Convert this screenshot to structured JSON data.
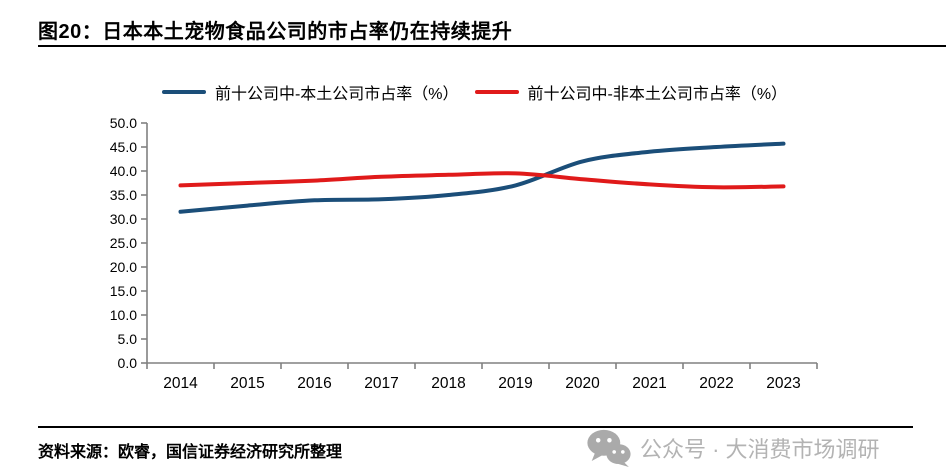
{
  "header": {
    "title": "图20：日本本土宠物食品公司的市占率仍在持续提升"
  },
  "chart_data": {
    "type": "line",
    "smooth": true,
    "grid": false,
    "legend_position": "top",
    "categories": [
      "2014",
      "2015",
      "2016",
      "2017",
      "2018",
      "2019",
      "2020",
      "2021",
      "2022",
      "2023"
    ],
    "series": [
      {
        "name": "前十公司中-本土公司市占率（%）",
        "color": "#1b4e79",
        "values": [
          31.5,
          32.8,
          33.9,
          34.1,
          35.0,
          37.0,
          42.0,
          44.0,
          45.0,
          45.7
        ]
      },
      {
        "name": "前十公司中-非本土公司市占率（%）",
        "color": "#e01a1a",
        "values": [
          37.0,
          37.5,
          38.0,
          38.8,
          39.2,
          39.5,
          38.3,
          37.2,
          36.6,
          36.8
        ]
      }
    ],
    "xlabel": "",
    "ylabel": "",
    "ylim": [
      0,
      50
    ],
    "ytick_step": 5,
    "ytick_decimals": 1,
    "axis_color": "#808080"
  },
  "footer": {
    "source": "资料来源：欧睿，国信证券经济研究所整理",
    "watermark": "公众号 · 大消费市场调研"
  }
}
